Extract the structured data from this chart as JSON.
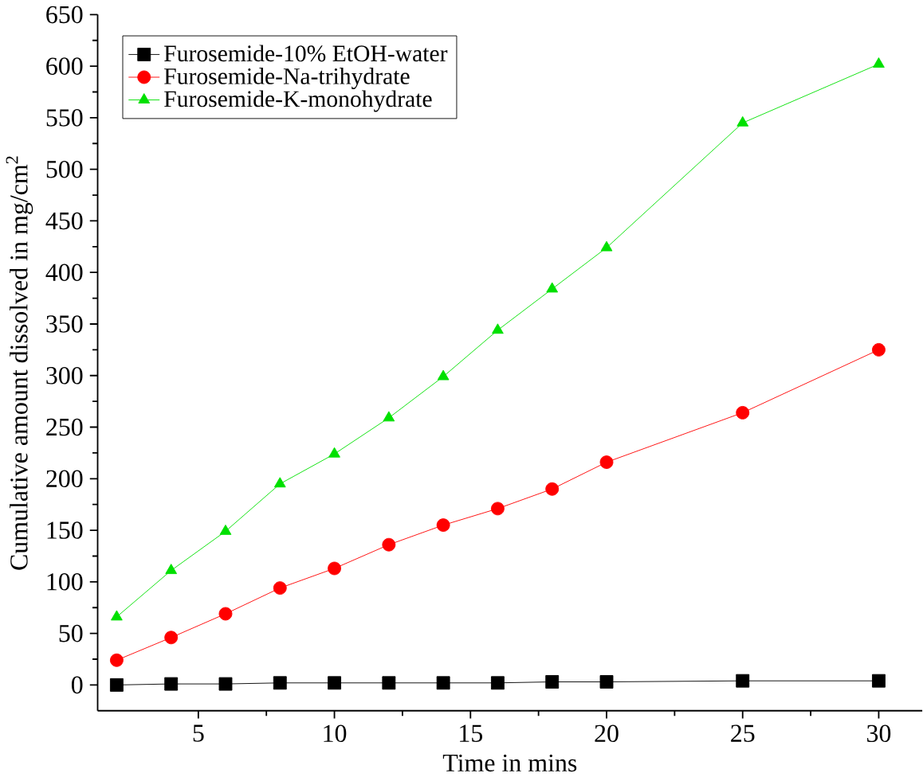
{
  "chart_data": {
    "type": "line",
    "xlabel": "Time in mins",
    "ylabel": "Cumulative amount dissolved in mg/cm$^{2}$",
    "x": [
      2,
      4,
      6,
      8,
      10,
      12,
      14,
      16,
      18,
      20,
      25,
      30
    ],
    "series": [
      {
        "name": "Furosemide-10% EtOH-water",
        "color": "#000000",
        "marker": "square",
        "values": [
          0,
          1,
          1,
          2,
          2,
          2,
          2,
          2,
          3,
          3,
          4,
          4
        ]
      },
      {
        "name": "Furosemide-Na-trihydrate",
        "color": "#ff0000",
        "marker": "circle",
        "values": [
          24,
          46,
          69,
          94,
          113,
          136,
          155,
          171,
          190,
          216,
          264,
          325
        ]
      },
      {
        "name": "Furosemide-K-monohydrate",
        "color": "#00e000",
        "marker": "triangle",
        "values": [
          66,
          111,
          149,
          195,
          224,
          259,
          299,
          344,
          384,
          424,
          545,
          602
        ]
      }
    ],
    "xlim": [
      1.3,
      31.6
    ],
    "ylim": [
      -25,
      650
    ],
    "xticks": [
      5,
      10,
      15,
      20,
      25,
      30
    ],
    "yticks": [
      0,
      50,
      100,
      150,
      200,
      250,
      300,
      350,
      400,
      450,
      500,
      550,
      600,
      650
    ],
    "legend": "top left",
    "grid": false,
    "line_style": "solid"
  }
}
